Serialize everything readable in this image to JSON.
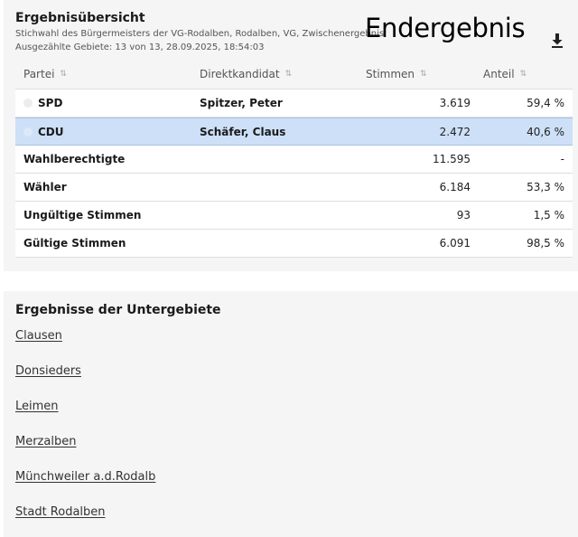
{
  "overview": {
    "title": "Ergebnisübersicht",
    "subtitle": "Stichwahl des Bürgermeisters der VG-Rodalben, Rodalben, VG, Zwischenergebnis",
    "meta": "Ausgezählte Gebiete: 13 von 13, 28.09.2025, 18:54:03",
    "overlay_text": "Endergebnis",
    "download_icon": "download-icon"
  },
  "table": {
    "headers": {
      "party": "Partei",
      "candidate": "Direktkandidat",
      "votes": "Stimmen",
      "share": "Anteil"
    },
    "rows": [
      {
        "party": "SPD",
        "candidate": "Spitzer, Peter",
        "votes": "3.619",
        "share": "59,4 %"
      },
      {
        "party": "CDU",
        "candidate": "Schäfer, Claus",
        "votes": "2.472",
        "share": "40,6 %"
      }
    ],
    "summary": [
      {
        "label": "Wahlberechtigte",
        "votes": "11.595",
        "share": "-"
      },
      {
        "label": "Wähler",
        "votes": "6.184",
        "share": "53,3 %"
      },
      {
        "label": "Ungültige Stimmen",
        "votes": "93",
        "share": "1,5 %"
      },
      {
        "label": "Gültige Stimmen",
        "votes": "6.091",
        "share": "98,5 %"
      }
    ]
  },
  "subareas": {
    "title": "Ergebnisse der Untergebiete",
    "links": [
      "Clausen",
      "Donsieders",
      "Leimen",
      "Merzalben",
      "Münchweiler a.d.Rodalb",
      "Stadt Rodalben"
    ]
  },
  "colors": {
    "selected_row": "#cde0f7",
    "card_bg": "#f5f5f5"
  }
}
